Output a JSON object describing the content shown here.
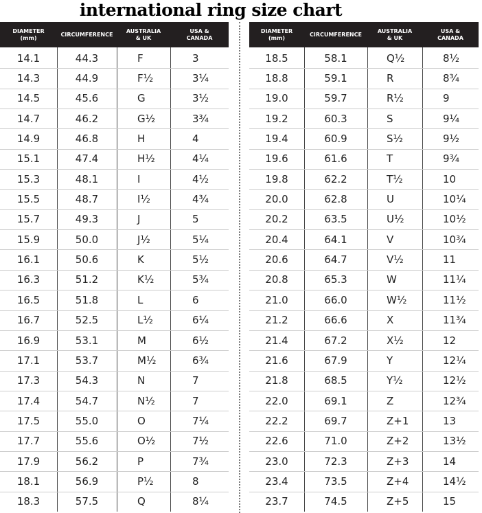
{
  "title": "international ring size chart",
  "tables": [
    {
      "headers": [
        [
          "DIAMETER",
          "(mm)"
        ],
        [
          "CIRCUMFERENCE"
        ],
        [
          "AUSTRALIA",
          "& UK"
        ],
        [
          "USA &",
          "CANADA"
        ]
      ],
      "rows": [
        [
          "14.1",
          "44.3",
          "F",
          "3"
        ],
        [
          "14.3",
          "44.9",
          "F½",
          "3¼"
        ],
        [
          "14.5",
          "45.6",
          "G",
          "3½"
        ],
        [
          "14.7",
          "46.2",
          "G½",
          "3¾"
        ],
        [
          "14.9",
          "46.8",
          "H",
          "4"
        ],
        [
          "15.1",
          "47.4",
          "H½",
          "4¼"
        ],
        [
          "15.3",
          "48.1",
          "I",
          "4½"
        ],
        [
          "15.5",
          "48.7",
          "I½",
          "4¾"
        ],
        [
          "15.7",
          "49.3",
          "J",
          "5"
        ],
        [
          "15.9",
          "50.0",
          "J½",
          "5¼"
        ],
        [
          "16.1",
          "50.6",
          "K",
          "5½"
        ],
        [
          "16.3",
          "51.2",
          "K½",
          "5¾"
        ],
        [
          "16.5",
          "51.8",
          "L",
          "6"
        ],
        [
          "16.7",
          "52.5",
          "L½",
          "6¼"
        ],
        [
          "16.9",
          "53.1",
          "M",
          "6½"
        ],
        [
          "17.1",
          "53.7",
          "M½",
          "6¾"
        ],
        [
          "17.3",
          "54.3",
          "N",
          "7"
        ],
        [
          "17.4",
          "54.7",
          "N½",
          "7"
        ],
        [
          "17.5",
          "55.0",
          "O",
          "7¼"
        ],
        [
          "17.7",
          "55.6",
          "O½",
          "7½"
        ],
        [
          "17.9",
          "56.2",
          "P",
          "7¾"
        ],
        [
          "18.1",
          "56.9",
          "P½",
          "8"
        ],
        [
          "18.3",
          "57.5",
          "Q",
          "8¼"
        ]
      ]
    },
    {
      "headers": [
        [
          "DIAMETER",
          "(mm)"
        ],
        [
          "CIRCUMFERENCE"
        ],
        [
          "AUSTRALIA",
          "& UK"
        ],
        [
          "USA &",
          "CANADA"
        ]
      ],
      "rows": [
        [
          "18.5",
          "58.1",
          "Q½",
          "8½"
        ],
        [
          "18.8",
          "59.1",
          "R",
          "8¾"
        ],
        [
          "19.0",
          "59.7",
          "R½",
          "9"
        ],
        [
          "19.2",
          "60.3",
          "S",
          "9¼"
        ],
        [
          "19.4",
          "60.9",
          "S½",
          "9½"
        ],
        [
          "19.6",
          "61.6",
          "T",
          "9¾"
        ],
        [
          "19.8",
          "62.2",
          "T½",
          "10"
        ],
        [
          "20.0",
          "62.8",
          "U",
          "10¼"
        ],
        [
          "20.2",
          "63.5",
          "U½",
          "10½"
        ],
        [
          "20.4",
          "64.1",
          "V",
          "10¾"
        ],
        [
          "20.6",
          "64.7",
          "V½",
          "11"
        ],
        [
          "20.8",
          "65.3",
          "W",
          "11¼"
        ],
        [
          "21.0",
          "66.0",
          "W½",
          "11½"
        ],
        [
          "21.2",
          "66.6",
          "X",
          "11¾"
        ],
        [
          "21.4",
          "67.2",
          "X½",
          "12"
        ],
        [
          "21.6",
          "67.9",
          "Y",
          "12¼"
        ],
        [
          "21.8",
          "68.5",
          "Y½",
          "12½"
        ],
        [
          "22.0",
          "69.1",
          "Z",
          "12¾"
        ],
        [
          "22.2",
          "69.7",
          "Z+1",
          "13"
        ],
        [
          "22.6",
          "71.0",
          "Z+2",
          "13½"
        ],
        [
          "23.0",
          "72.3",
          "Z+3",
          "14"
        ],
        [
          "23.4",
          "73.5",
          "Z+4",
          "14½"
        ],
        [
          "23.7",
          "74.5",
          "Z+5",
          "15"
        ]
      ]
    }
  ]
}
